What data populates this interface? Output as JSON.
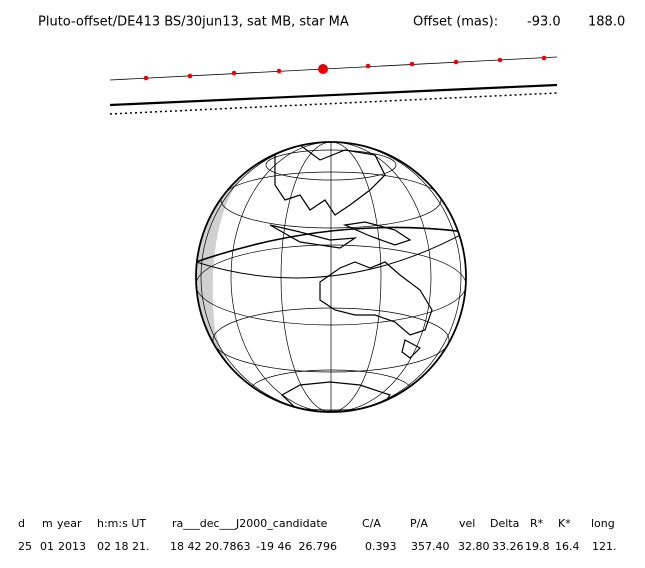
{
  "header": {
    "title": "Pluto-offset/DE413 BS/30jun13, sat MB, star MA",
    "offset_label": "Offset (mas):",
    "offset_values": [
      "-93.0",
      "188.0"
    ]
  },
  "table": {
    "headers": [
      "d",
      "m",
      "year",
      "h:m:s UT",
      "ra___dec___J2000_candidate",
      "C/A",
      "P/A",
      "vel",
      "Delta",
      "R*",
      "K*",
      "long"
    ],
    "rows": [
      [
        "25",
        "01",
        "2013",
        "02 18 21.",
        "18 42 20.7863",
        "-19 46  26.796",
        "0.393",
        "357.40",
        "32.80",
        "33.26",
        "19.8",
        "16.4",
        "121."
      ]
    ]
  }
}
